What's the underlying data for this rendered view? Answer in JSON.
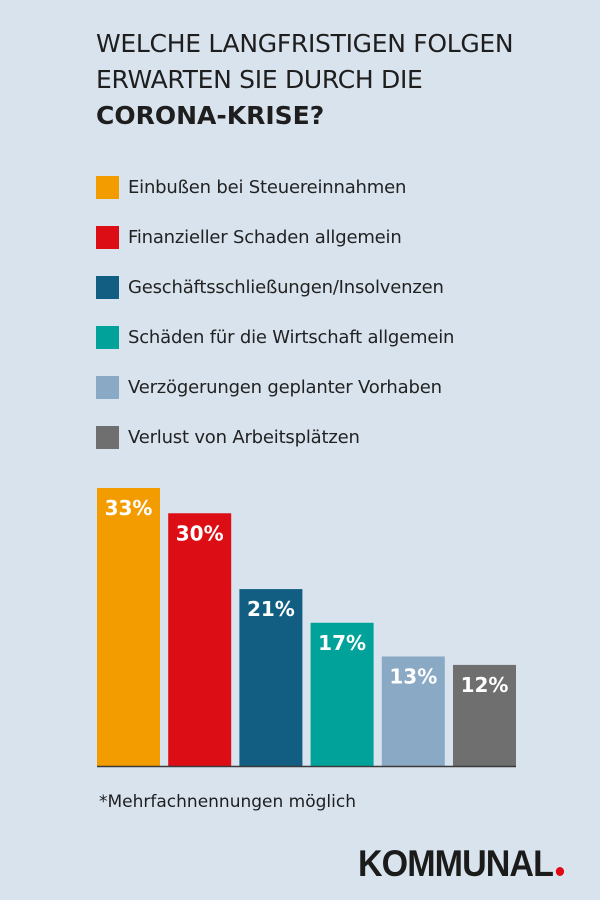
{
  "title": {
    "line1": "WELCHE LANGFRISTIGEN FOLGEN",
    "line2": "ERWARTEN SIE DURCH DIE",
    "line3": "CORONA-KRISE?"
  },
  "footnote": "*Mehrfachnennungen möglich",
  "brand": {
    "name": "KOMMUNAL",
    "dot_color": "#e30613"
  },
  "chart_data": {
    "type": "bar",
    "title": "WELCHE LANGFRISTIGEN FOLGEN ERWARTEN SIE DURCH DIE CORONA-KRISE?",
    "xlabel": "",
    "ylabel": "",
    "ylim": [
      0,
      33
    ],
    "grid": false,
    "legend_position": "top-left",
    "categories": [
      "Einbußen bei Steuereinnahmen",
      "Finanzieller Schaden allgemein",
      "Geschäftsschließungen/Insolvenzen",
      "Schäden für die Wirtschaft allgemein",
      "Verzögerungen geplanter Vorhaben",
      "Verlust von Arbeitsplätzen"
    ],
    "values": [
      33,
      30,
      21,
      17,
      13,
      12
    ],
    "data_labels": [
      "33%",
      "30%",
      "21%",
      "17%",
      "13%",
      "12%"
    ],
    "colors": [
      "#f39c00",
      "#dc0d15",
      "#125e83",
      "#00a29a",
      "#8aa9c4",
      "#6f6f6f"
    ],
    "unit": "%"
  }
}
